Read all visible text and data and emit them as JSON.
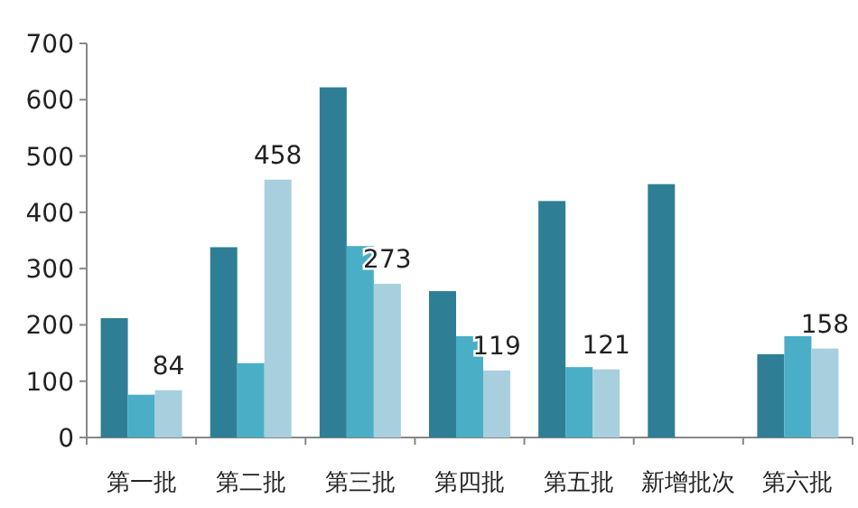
{
  "chart_data": {
    "type": "bar",
    "categories": [
      "第一批",
      "第二批",
      "第三批",
      "第四批",
      "第五批",
      "新增批次",
      "第六批"
    ],
    "ylim": [
      0,
      700
    ],
    "yticks": [
      0,
      100,
      200,
      300,
      400,
      500,
      600,
      700
    ],
    "grid": false,
    "series": [
      {
        "color": "#2e7f96",
        "values": [
          212,
          338,
          622,
          260,
          420,
          450,
          148
        ]
      },
      {
        "color": "#4aaec6",
        "values": [
          76,
          132,
          340,
          180,
          125,
          null,
          180
        ]
      },
      {
        "color": "#a8cfdd",
        "values": [
          84,
          458,
          273,
          119,
          121,
          null,
          158
        ],
        "value_labels": [
          "84",
          "458",
          "273",
          "119",
          "121",
          null,
          "158"
        ]
      }
    ]
  }
}
